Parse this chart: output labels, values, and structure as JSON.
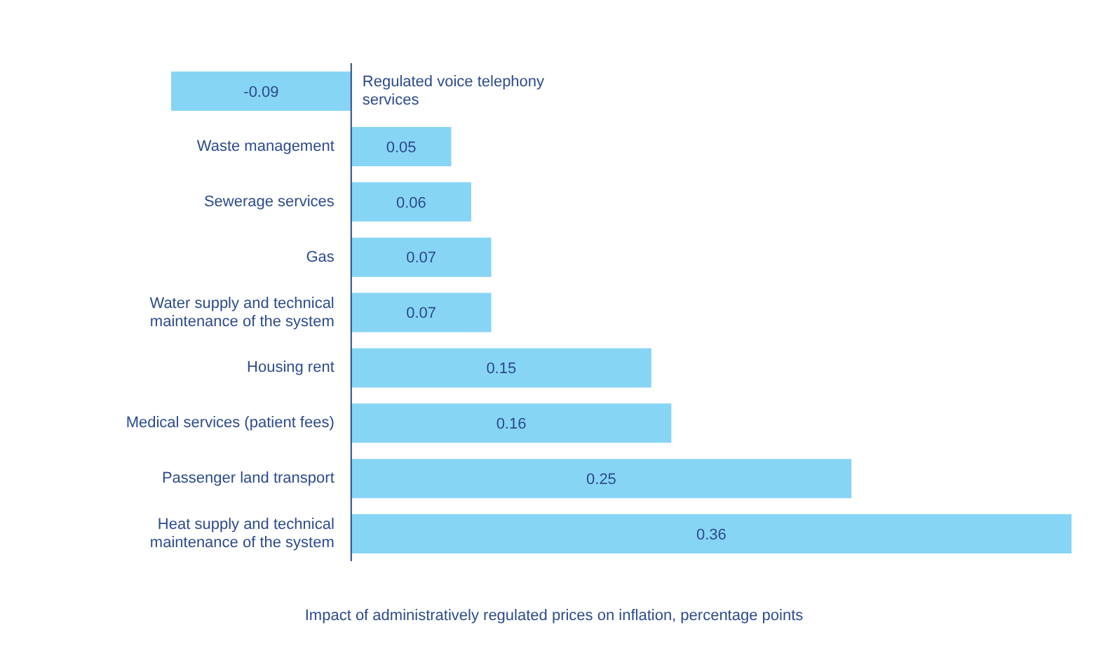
{
  "chart_data": {
    "type": "bar",
    "orientation": "horizontal",
    "xlabel": "Impact of administratively regulated prices on inflation, percentage points",
    "categories": [
      "Regulated voice telephony services",
      "Waste management",
      "Sewerage services",
      "Gas",
      "Water supply and technical maintenance of the system",
      "Housing rent",
      "Medical services (patient fees)",
      "Passenger land transport",
      "Heat supply and technical maintenance of the system"
    ],
    "values": [
      -0.09,
      0.05,
      0.06,
      0.07,
      0.07,
      0.15,
      0.16,
      0.25,
      0.36
    ],
    "color": "#87d5f5",
    "data_labels": true,
    "grid": false,
    "legend": false
  }
}
